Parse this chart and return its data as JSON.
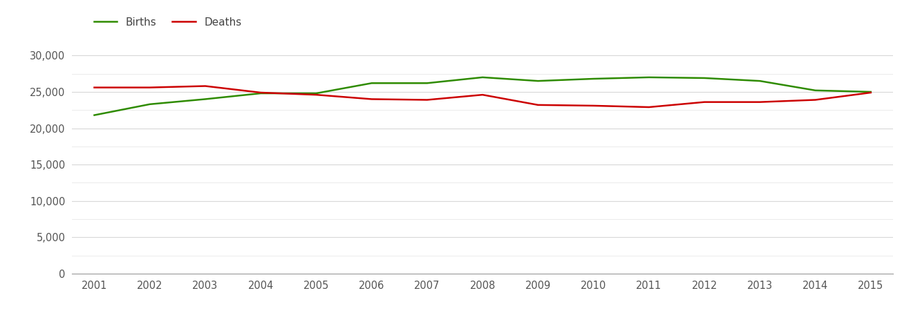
{
  "years": [
    2001,
    2002,
    2003,
    2004,
    2005,
    2006,
    2007,
    2008,
    2009,
    2010,
    2011,
    2012,
    2013,
    2014,
    2015
  ],
  "births": [
    21800,
    23300,
    24000,
    24800,
    24800,
    26200,
    26200,
    27000,
    26500,
    26800,
    27000,
    26900,
    26500,
    25200,
    25000
  ],
  "deaths": [
    25600,
    25600,
    25800,
    24900,
    24600,
    24000,
    23900,
    24600,
    23200,
    23100,
    22900,
    23600,
    23600,
    23900,
    24900
  ],
  "births_color": "#2e8b00",
  "deaths_color": "#cc0000",
  "line_width": 1.8,
  "ylim": [
    0,
    32500
  ],
  "yticks": [
    0,
    5000,
    10000,
    15000,
    20000,
    25000,
    30000
  ],
  "ytick_labels": [
    "0",
    "5,000",
    "10,000",
    "15,000",
    "20,000",
    "25,000",
    "30,000"
  ],
  "minor_yticks": [
    2500,
    7500,
    12500,
    17500,
    22500,
    27500
  ],
  "background_color": "#ffffff",
  "grid_color": "#d8d8d8",
  "minor_grid_color": "#e8e8e8",
  "legend_labels": [
    "Births",
    "Deaths"
  ],
  "legend_text_color": "#444444",
  "tick_label_color": "#555555",
  "tick_fontsize": 10.5,
  "legend_fontsize": 11
}
